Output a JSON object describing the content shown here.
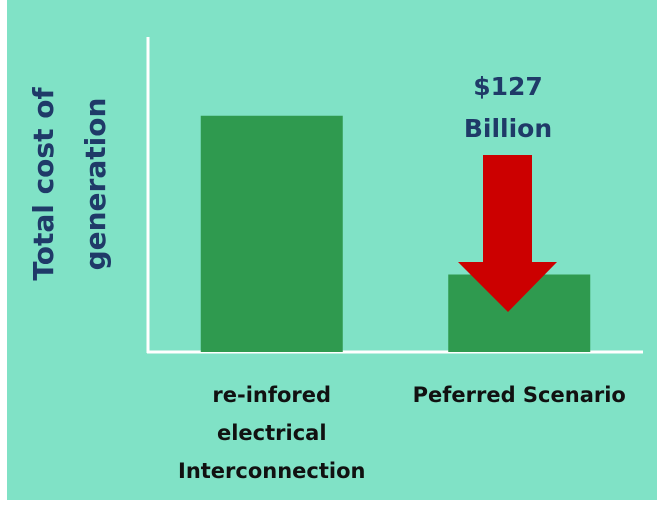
{
  "chart_data": {
    "type": "bar",
    "y_label": "Total cost of generation",
    "annotation": [
      "$127",
      "Billion"
    ],
    "categories": [
      "re-infored electrical Interconnection",
      "Peferred Scenario"
    ],
    "values": [
      189,
      62
    ],
    "color": "#2f9a4f",
    "ylim": [
      0,
      252
    ]
  }
}
